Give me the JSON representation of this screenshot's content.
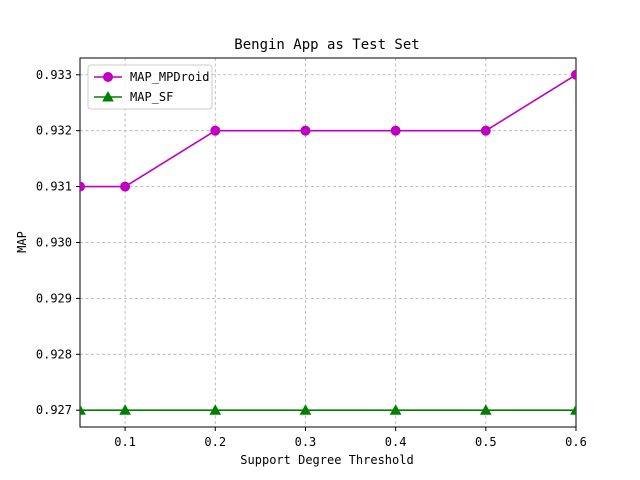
{
  "chart_data": {
    "type": "line",
    "title": "Bengin App as Test Set",
    "xlabel": "Support Degree Threshold",
    "ylabel": "MAP",
    "x": [
      0.05,
      0.1,
      0.2,
      0.3,
      0.4,
      0.5,
      0.6
    ],
    "xlim": [
      0.05,
      0.6
    ],
    "ylim": [
      0.9267,
      0.9333
    ],
    "xticks": [
      0.1,
      0.2,
      0.3,
      0.4,
      0.5,
      0.6
    ],
    "xtick_labels": [
      "0.1",
      "0.2",
      "0.3",
      "0.4",
      "0.5",
      "0.6"
    ],
    "yticks": [
      0.927,
      0.928,
      0.929,
      0.93,
      0.931,
      0.932,
      0.933
    ],
    "ytick_labels": [
      "0.927",
      "0.928",
      "0.929",
      "0.930",
      "0.931",
      "0.932",
      "0.933"
    ],
    "grid": true,
    "legend_position": "top-left",
    "series": [
      {
        "name": "MAP_MPDroid",
        "values": [
          0.931,
          0.931,
          0.932,
          0.932,
          0.932,
          0.932,
          0.933
        ],
        "color": "#bf00bf",
        "marker": "circle"
      },
      {
        "name": "MAP_SF",
        "values": [
          0.927,
          0.927,
          0.927,
          0.927,
          0.927,
          0.927,
          0.927
        ],
        "color": "#008000",
        "marker": "triangle"
      }
    ]
  }
}
